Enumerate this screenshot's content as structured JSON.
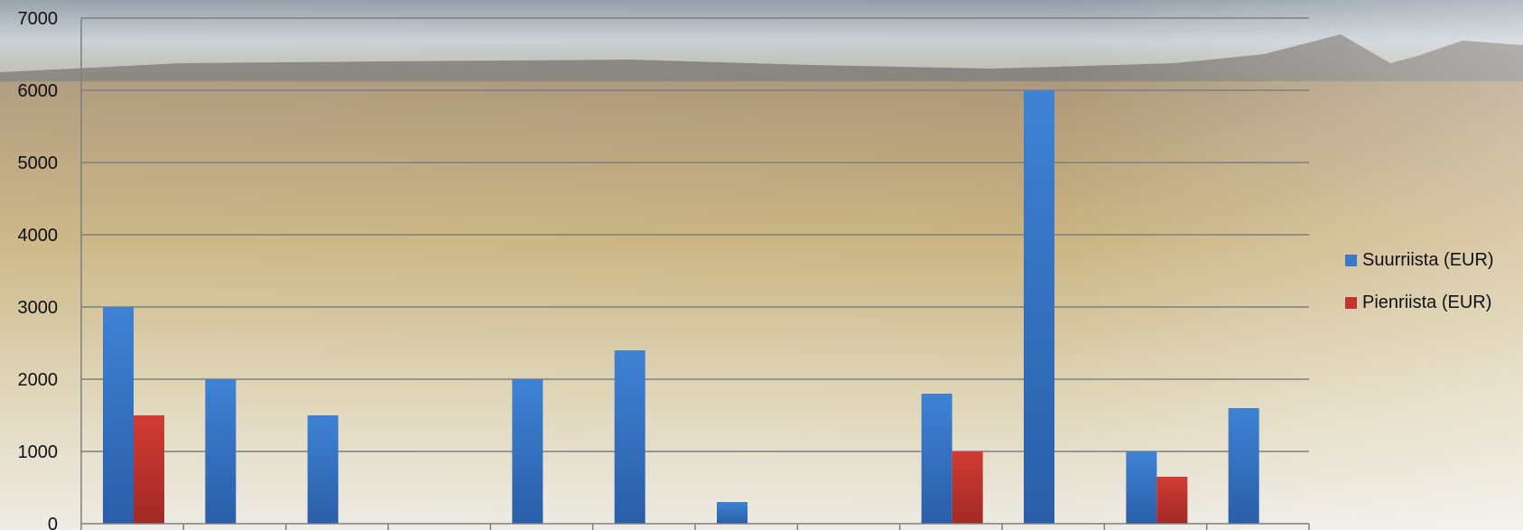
{
  "chart_data": {
    "type": "bar",
    "categories": [
      "",
      "",
      "",
      "",
      "",
      "",
      "",
      "",
      "",
      "",
      "",
      ""
    ],
    "series": [
      {
        "name": "Suurriista (EUR)",
        "color": "#3a78c9",
        "values": [
          3000,
          2000,
          1500,
          0,
          2000,
          2400,
          300,
          0,
          1800,
          6000,
          1000,
          1600
        ]
      },
      {
        "name": "Pienriista (EUR)",
        "color": "#c0342f",
        "values": [
          1500,
          0,
          0,
          0,
          0,
          0,
          0,
          0,
          1000,
          0,
          650,
          0
        ]
      }
    ],
    "yticks": [
      "0",
      "1000",
      "2000",
      "3000",
      "4000",
      "5000",
      "6000",
      "7000"
    ],
    "ylim": [
      0,
      7000
    ],
    "title": "",
    "xlabel": "",
    "ylabel": "",
    "grid": true,
    "legend_position": "right"
  },
  "background": {
    "description_icon": "tundra-landscape-photo"
  }
}
